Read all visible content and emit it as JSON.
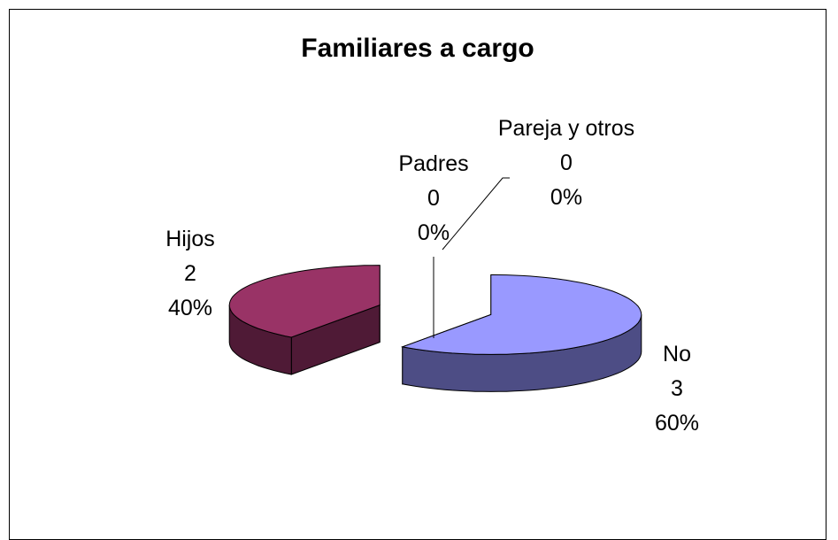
{
  "chart_data": {
    "type": "pie3d",
    "title": "Familiares a cargo",
    "categories": [
      "No",
      "Hijos",
      "Padres",
      "Pareja y otros"
    ],
    "values": [
      3,
      2,
      0,
      0
    ],
    "percent_labels": [
      "60%",
      "40%",
      "0%",
      "0%"
    ],
    "colors": [
      "#9999ff",
      "#993366",
      "#ffffcc",
      "#ccffff"
    ],
    "side_colors": [
      "#4d4d85",
      "#4f1a36",
      "#80805f",
      "#5f8080"
    ]
  }
}
